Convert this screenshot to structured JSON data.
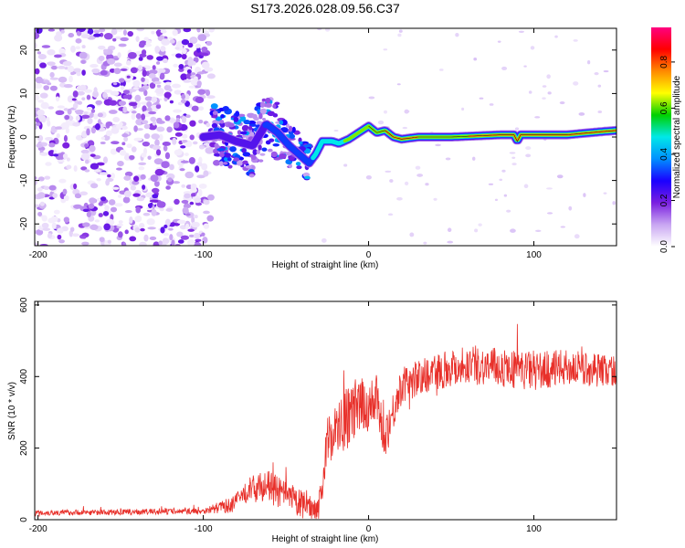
{
  "figure_title": "S173.2026.028.09.56.C37",
  "chart_data": [
    {
      "type": "heatmap",
      "title": "S173.2026.028.09.56.C37",
      "xlabel": "Height of straight line (km)",
      "ylabel": "Frequency (Hz)",
      "xlim": [
        -202,
        150
      ],
      "ylim": [
        -25,
        25
      ],
      "xticks": [
        -200,
        -100,
        0,
        100
      ],
      "xtick_labels": [
        "-200",
        "-100",
        "0",
        "100"
      ],
      "yticks": [
        20,
        10,
        0,
        -10,
        -20
      ],
      "ytick_labels": [
        "20",
        "10",
        "0",
        "-10",
        "-20"
      ],
      "colorbar": {
        "label": "Normalized spectral amplitude",
        "range": [
          0,
          0.95
        ],
        "ticks": [
          0.0,
          0.2,
          0.4,
          0.6,
          0.8
        ],
        "tick_labels": [
          "0.0",
          "0.2",
          "0.4",
          "0.6",
          "0.8"
        ],
        "colors": [
          "#ffffff",
          "#c9a6f2",
          "#7a1fe0",
          "#1a00ff",
          "#0090ff",
          "#00e8e8",
          "#00d000",
          "#ffff00",
          "#ff8a00",
          "#ff0000",
          "#ff0080"
        ]
      },
      "ridge_frequency": {
        "x": [
          -100,
          -90,
          -80,
          -70,
          -62,
          -55,
          -48,
          -42,
          -36,
          -32,
          -28,
          -22,
          -18,
          -12,
          -8,
          -4,
          0,
          5,
          10,
          15,
          20,
          30,
          50,
          80,
          88,
          90,
          92,
          100,
          120,
          140,
          150
        ],
        "y": [
          0,
          0.5,
          -1,
          -2,
          3,
          1,
          -2,
          -4,
          -6,
          -4,
          -1,
          -1,
          -1.5,
          -0.5,
          0.5,
          1.5,
          2.5,
          1,
          1.5,
          0,
          -0.5,
          0,
          0,
          0.5,
          0.5,
          -1,
          0.5,
          0.5,
          0.5,
          1.2,
          1.5
        ]
      },
      "ridge_amplitude": {
        "x": [
          -100,
          -90,
          -75,
          -60,
          -50,
          -40,
          -34,
          -28,
          -20,
          -10,
          0,
          10,
          20,
          40,
          60,
          80,
          100,
          120,
          150
        ],
        "y": [
          0.25,
          0.3,
          0.3,
          0.35,
          0.4,
          0.45,
          0.5,
          0.5,
          0.6,
          0.7,
          0.75,
          0.8,
          0.82,
          0.78,
          0.8,
          0.85,
          0.88,
          0.85,
          0.8
        ]
      },
      "noise_region_x": [
        -202,
        -95
      ]
    },
    {
      "type": "line",
      "xlabel": "Height of straight line (km)",
      "ylabel": "SNR (10 * v/v)",
      "xlim": [
        -202,
        150
      ],
      "ylim": [
        0,
        610
      ],
      "xticks": [
        -200,
        -100,
        0,
        100
      ],
      "xtick_labels": [
        "-200",
        "-100",
        "0",
        "100"
      ],
      "yticks": [
        0,
        200,
        400,
        600
      ],
      "ytick_labels": [
        "0",
        "200",
        "400",
        "600"
      ],
      "color": "#e8302a",
      "envelope": {
        "x": [
          -202,
          -150,
          -100,
          -82,
          -72,
          -62,
          -50,
          -40,
          -30,
          -24,
          -18,
          -10,
          0,
          5,
          10,
          20,
          30,
          40,
          60,
          80,
          100,
          120,
          150
        ],
        "y": [
          20,
          22,
          25,
          45,
          90,
          100,
          70,
          45,
          35,
          250,
          260,
          310,
          330,
          330,
          240,
          380,
          400,
          420,
          440,
          430,
          420,
          430,
          420
        ]
      },
      "noise_amplitude": {
        "x": [
          -202,
          -100,
          -80,
          -60,
          -40,
          -30,
          -24,
          -10,
          20,
          60,
          100,
          150
        ],
        "y": [
          8,
          8,
          25,
          45,
          40,
          30,
          80,
          90,
          50,
          55,
          55,
          45
        ]
      }
    }
  ]
}
